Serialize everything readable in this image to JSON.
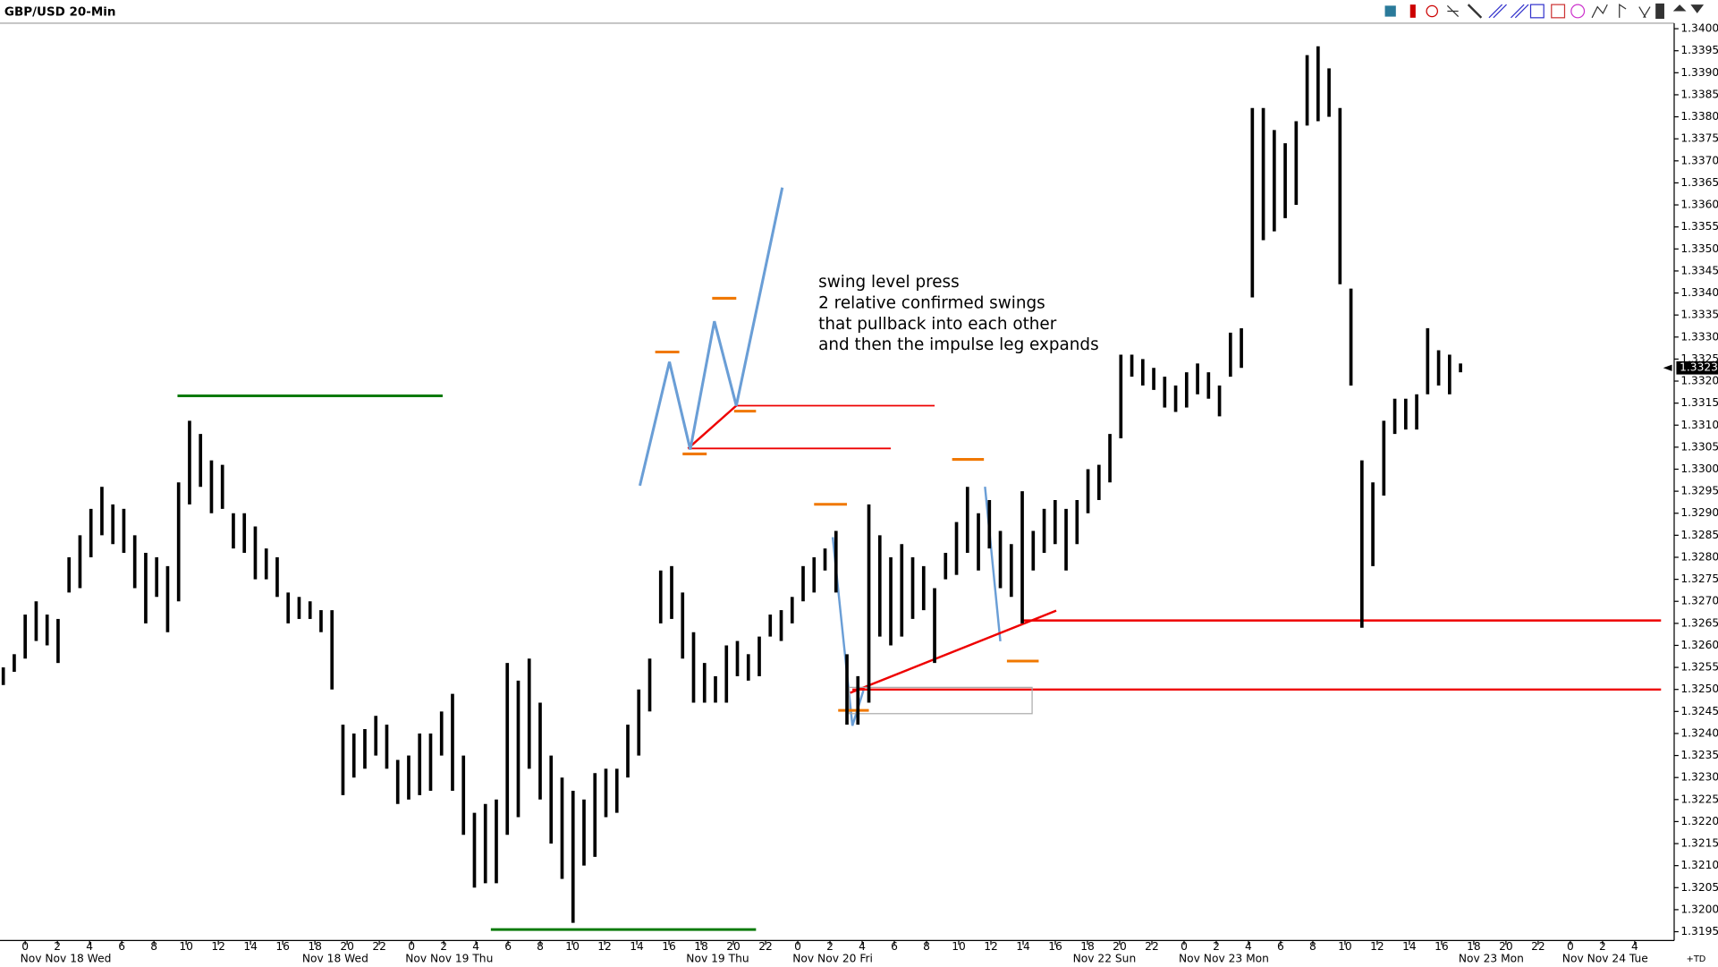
{
  "chart_data": {
    "type": "range-bar",
    "title": "GBP/USD 20-Min",
    "series": [
      {
        "name": "high",
        "color": "#000000",
        "values": [
          1.3255,
          1.3258,
          1.3267,
          1.327,
          1.3267,
          1.3266,
          1.328,
          1.3285,
          1.3291,
          1.3296,
          1.3292,
          1.3291,
          1.3285,
          1.3281,
          1.328,
          1.3278,
          1.3297,
          1.3311,
          1.3308,
          1.3302,
          1.3301,
          1.329,
          1.329,
          1.3287,
          1.3282,
          1.328,
          1.3272,
          1.3271,
          1.327,
          1.3268,
          1.3268,
          1.3242,
          1.324,
          1.3241,
          1.3244,
          1.3242,
          1.3234,
          1.3235,
          1.324,
          1.324,
          1.3245,
          1.3249,
          1.3235,
          1.3222,
          1.3224,
          1.3225,
          1.3256,
          1.3252,
          1.3257,
          1.3247,
          1.3235,
          1.323,
          1.3227,
          1.3225,
          1.3231,
          1.3232,
          1.3232,
          1.3242,
          1.325,
          1.3257,
          1.3277,
          1.3278,
          1.3272,
          1.3263,
          1.3256,
          1.3253,
          1.326,
          1.3261,
          1.3258,
          1.3262,
          1.3267,
          1.3268,
          1.3271,
          1.3278,
          1.328,
          1.3282,
          1.3286,
          1.3258,
          1.3253,
          1.3292,
          1.3285,
          1.328,
          1.3283,
          1.328,
          1.3278,
          1.3273,
          1.3281,
          1.3288,
          1.3296,
          1.329,
          1.3293,
          1.3286,
          1.3283,
          1.3295,
          1.3286,
          1.3291,
          1.3293,
          1.3291,
          1.3293,
          1.33,
          1.3301,
          1.3308,
          1.3326,
          1.3326,
          1.3325,
          1.3323,
          1.3321,
          1.3319,
          1.3322,
          1.3324,
          1.3322,
          1.3319,
          1.3331,
          1.3332,
          1.3382,
          1.3382,
          1.3377,
          1.3374,
          1.3379,
          1.3394,
          1.3396,
          1.3391,
          1.3382,
          1.3341,
          1.3302,
          1.3297,
          1.3311,
          1.3316,
          1.3316,
          1.3317,
          1.3332,
          1.3327,
          1.3326,
          1.3324
        ]
      },
      {
        "name": "low",
        "color": "#000000",
        "values": [
          1.3251,
          1.3254,
          1.3257,
          1.3261,
          1.326,
          1.3256,
          1.3272,
          1.3273,
          1.328,
          1.3285,
          1.3283,
          1.3281,
          1.3273,
          1.3265,
          1.3271,
          1.3263,
          1.327,
          1.3292,
          1.3296,
          1.329,
          1.3291,
          1.3282,
          1.3281,
          1.3275,
          1.3275,
          1.3271,
          1.3265,
          1.3266,
          1.3266,
          1.3263,
          1.325,
          1.3226,
          1.323,
          1.3232,
          1.3235,
          1.3232,
          1.3224,
          1.3225,
          1.3226,
          1.3227,
          1.3235,
          1.3227,
          1.3217,
          1.3205,
          1.3206,
          1.3206,
          1.3217,
          1.3221,
          1.3232,
          1.3225,
          1.3215,
          1.3207,
          1.3197,
          1.321,
          1.3212,
          1.3221,
          1.3222,
          1.323,
          1.3235,
          1.3245,
          1.3265,
          1.3266,
          1.3257,
          1.3247,
          1.3247,
          1.3247,
          1.3247,
          1.3253,
          1.3252,
          1.3253,
          1.3262,
          1.3261,
          1.3265,
          1.327,
          1.3272,
          1.3277,
          1.3272,
          1.3242,
          1.3242,
          1.3247,
          1.3262,
          1.326,
          1.3262,
          1.3266,
          1.3268,
          1.3256,
          1.3275,
          1.3276,
          1.3281,
          1.3277,
          1.3282,
          1.3273,
          1.3271,
          1.3265,
          1.3277,
          1.3281,
          1.3283,
          1.3277,
          1.3283,
          1.329,
          1.3293,
          1.3297,
          1.3307,
          1.3321,
          1.3319,
          1.3318,
          1.3314,
          1.3313,
          1.3314,
          1.3317,
          1.3316,
          1.3312,
          1.3321,
          1.3323,
          1.3339,
          1.3352,
          1.3354,
          1.3357,
          1.336,
          1.3378,
          1.3379,
          1.338,
          1.3342,
          1.3319,
          1.3264,
          1.3278,
          1.3294,
          1.3308,
          1.3309,
          1.3309,
          1.3317,
          1.3319,
          1.3317,
          1.3322
        ]
      }
    ],
    "ylim": [
      1.3193,
      1.3401
    ],
    "yticks": [
      1.3195,
      {
        "value": 1.32,
        "label": "1.3200"
      },
      1.3205,
      {
        "value": 1.321,
        "label": "1.3210"
      },
      1.3215,
      {
        "value": 1.322,
        "label": "1.3220"
      },
      1.3225,
      {
        "value": 1.323,
        "label": "1.3230"
      },
      1.3235,
      {
        "value": 1.324,
        "label": "1.3240"
      },
      1.3245,
      {
        "value": 1.325,
        "label": "1.3250"
      },
      1.3255,
      {
        "value": 1.326,
        "label": "1.3260"
      },
      1.3265,
      {
        "value": 1.327,
        "label": "1.3270"
      },
      1.3275,
      {
        "value": 1.328,
        "label": "1.3280"
      },
      1.3285,
      {
        "value": 1.329,
        "label": "1.3290"
      },
      1.3295,
      {
        "value": 1.33,
        "label": "1.3300"
      },
      1.3305,
      {
        "value": 1.331,
        "label": "1.3310"
      },
      1.3315,
      {
        "value": 1.332,
        "label": "1.3320"
      },
      1.3325,
      {
        "value": 1.333,
        "label": "1.3330"
      },
      1.3335,
      {
        "value": 1.334,
        "label": "1.3340"
      },
      1.3345,
      {
        "value": 1.335,
        "label": "1.3350"
      },
      1.3355,
      {
        "value": 1.336,
        "label": "1.3360"
      },
      1.3365,
      {
        "value": 1.337,
        "label": "1.3370"
      },
      1.3375,
      {
        "value": 1.338,
        "label": "1.3380"
      },
      1.3385,
      {
        "value": 1.339,
        "label": "1.3390"
      },
      1.3395,
      {
        "value": 1.34,
        "label": "1.3400"
      }
    ],
    "time_labels": [
      0,
      2,
      4,
      6,
      8,
      10,
      12,
      14,
      16,
      18,
      20,
      22,
      0,
      2,
      4,
      6,
      8,
      10,
      12,
      14,
      16,
      18,
      20,
      22,
      0,
      2,
      4,
      6,
      8,
      10,
      12,
      14,
      16,
      18,
      20,
      22,
      0,
      2,
      4,
      6,
      8,
      10,
      12,
      14,
      16,
      18,
      20,
      22,
      0,
      2,
      4
    ],
    "date_labels": [
      "Nov Nov 18 Wed",
      "Nov 18 Wed",
      "Nov Nov 19 Thu",
      "Nov 19 Thu",
      "Nov Nov 20 Fri",
      "Nov 22 Sun",
      "Nov Nov 23 Mon",
      "Nov 23 Mon",
      "Nov Nov 24 Tue"
    ],
    "last_price": 1.3323,
    "corner_label": "+TD",
    "annotation": [
      "swing level press",
      "2 relative confirmed swings",
      "that pullback into each other",
      "and then the impulse leg expands"
    ]
  }
}
